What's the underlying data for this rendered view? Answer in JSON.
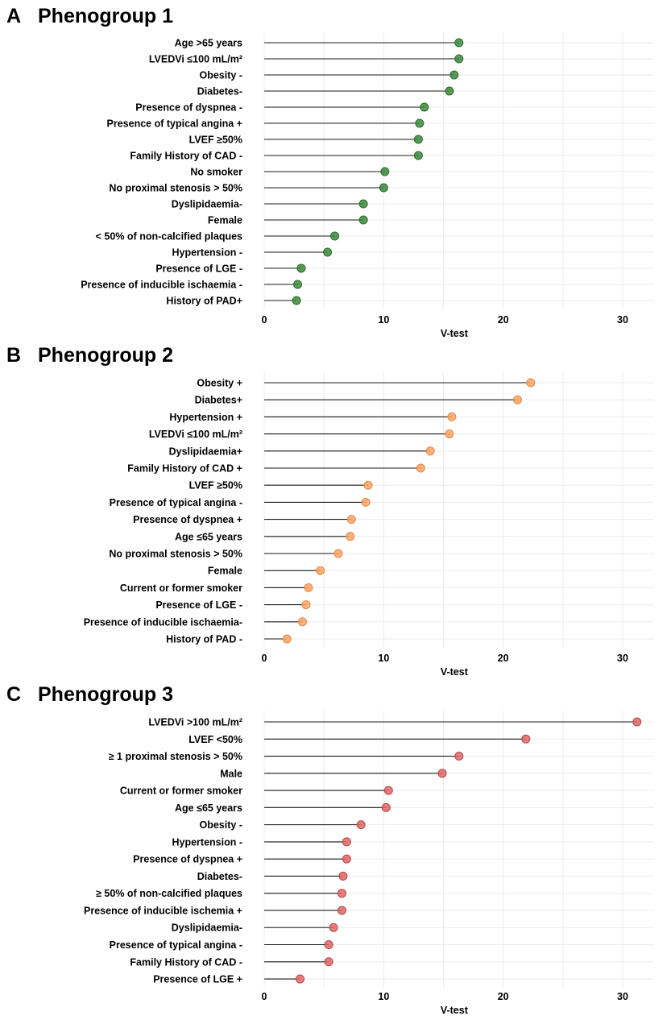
{
  "chart_data": [
    {
      "type": "lollipop",
      "panel": "A",
      "title": "Phenogroup 1",
      "xlabel": "V-test",
      "xlim": [
        0,
        32.5
      ],
      "xticks": [
        0,
        10,
        20,
        30
      ],
      "colors": {
        "fill": "#3a8a3a",
        "stroke": "#2d6b2d"
      },
      "categories": [
        "Age >65 years",
        "LVEDVi ≤100 mL/m²",
        "Obesity -",
        "Diabetes-",
        "Presence of dyspnea -",
        "Presence of typical angina +",
        "LVEF ≥50%",
        "Family History of CAD -",
        "No smoker",
        "No proximal stenosis > 50%",
        "Dyslipidaemia-",
        "Female",
        "< 50% of non-calcified plaques",
        "Hypertension -",
        "Presence of LGE -",
        "Presence of inducible ischaemia -",
        "History of PAD+"
      ],
      "values": [
        16.3,
        16.3,
        15.9,
        15.5,
        13.4,
        13.0,
        12.9,
        12.9,
        10.1,
        10.0,
        8.3,
        8.3,
        5.9,
        5.3,
        3.1,
        2.8,
        2.7
      ]
    },
    {
      "type": "lollipop",
      "panel": "B",
      "title": "Phenogroup 2",
      "xlabel": "V-test",
      "xlim": [
        0,
        32.5
      ],
      "xticks": [
        0,
        10,
        20,
        30
      ],
      "colors": {
        "fill": "#fba462",
        "stroke": "#e8874a"
      },
      "categories": [
        "Obesity +",
        "Diabetes+",
        "Hypertension +",
        "LVEDVi ≤100 mL/m²",
        "Dyslipidaemia+",
        "Family History of CAD +",
        "LVEF ≥50%",
        "Presence of typical angina -",
        "Presence of dyspnea +",
        "Age ≤65 years",
        "No proximal stenosis > 50%",
        "Female",
        "Current or former smoker",
        "Presence of LGE -",
        "Presence of inducible ischaemia-",
        "History of PAD -"
      ],
      "values": [
        22.3,
        21.2,
        15.7,
        15.5,
        13.9,
        13.1,
        8.7,
        8.5,
        7.3,
        7.2,
        6.2,
        4.7,
        3.7,
        3.5,
        3.2,
        1.9
      ]
    },
    {
      "type": "lollipop",
      "panel": "C",
      "title": "Phenogroup 3",
      "xlabel": "V-test",
      "xlim": [
        0,
        32.5
      ],
      "xticks": [
        0,
        10,
        20,
        30
      ],
      "colors": {
        "fill": "#e06666",
        "stroke": "#b84646"
      },
      "categories": [
        "LVEDVi >100 mL/m²",
        "LVEF <50%",
        "≥ 1 proximal stenosis > 50%",
        "Male",
        "Current or former smoker",
        "Age ≤65 years",
        "Obesity -",
        "Hypertension -",
        "Presence of dyspnea +",
        "Diabetes-",
        "≥ 50% of non-calcified plaques",
        "Presence of inducible ischemia +",
        "Dyslipidaemia-",
        "Presence of typical angina -",
        "Family History of CAD -",
        "Presence of LGE +"
      ],
      "values": [
        31.2,
        21.9,
        16.3,
        14.9,
        10.4,
        10.2,
        8.1,
        6.9,
        6.9,
        6.6,
        6.5,
        6.5,
        5.8,
        5.4,
        5.4,
        3.0
      ]
    }
  ]
}
